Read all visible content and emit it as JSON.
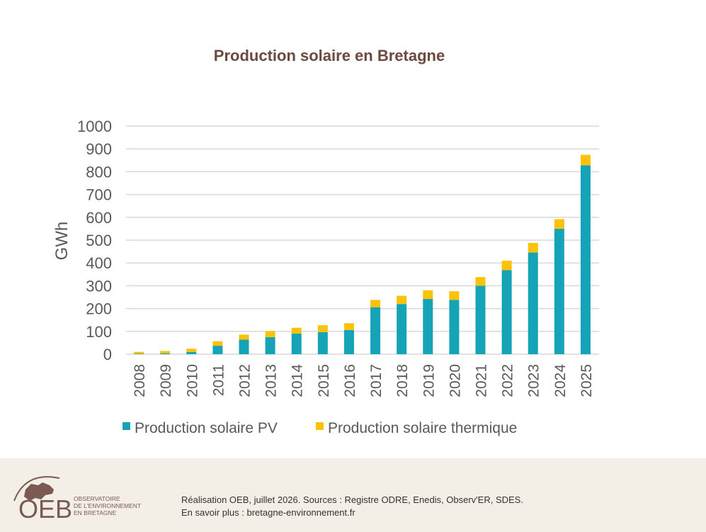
{
  "chart_data": {
    "type": "bar",
    "stacked": true,
    "title": "Production solaire en Bretagne",
    "ylabel": "GWh",
    "xlabel": "",
    "ylim": [
      0,
      1000
    ],
    "yticks": [
      "0",
      "100",
      "200",
      "300",
      "400",
      "500",
      "600",
      "700",
      "800",
      "900",
      "1000"
    ],
    "grid": true,
    "legend_position": "bottom",
    "categories": [
      "2008",
      "2009",
      "2010",
      "2011",
      "2012",
      "2013",
      "2014",
      "2015",
      "2016",
      "2017",
      "2018",
      "2019",
      "2020",
      "2021",
      "2022",
      "2023",
      "2024",
      "2025"
    ],
    "series": [
      {
        "name": "Production solaire PV",
        "color": "#15a3b8",
        "values": [
          2,
          4,
          10,
          37,
          64,
          75,
          90,
          97,
          106,
          206,
          220,
          242,
          238,
          300,
          368,
          446,
          550,
          828
        ]
      },
      {
        "name": "Production solaire thermique",
        "color": "#fcc20a",
        "values": [
          8,
          10,
          14,
          20,
          22,
          26,
          26,
          30,
          30,
          32,
          36,
          38,
          38,
          38,
          42,
          42,
          42,
          46
        ]
      }
    ]
  },
  "footer": {
    "logo_text": "OEB",
    "logo_subtitle": [
      "OBSERVATOIRE",
      "DE L'ENVIRONNEMENT",
      "EN BRETAGNE"
    ],
    "credit_line_1": "Réalisation OEB, juillet 2026. Sources : Registre ODRE, Enedis, Observ'ER, SDES.",
    "credit_line_2": "En savoir plus : bretagne-environnement.fr"
  }
}
